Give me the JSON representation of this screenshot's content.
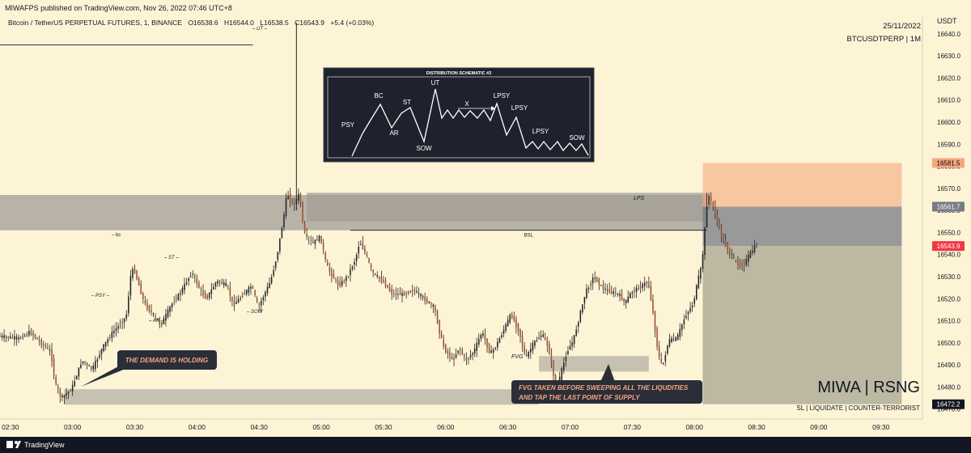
{
  "header": {
    "publisher": "MIWAFPS published on TradingView.com, Nov 26, 2022 07:46 UTC+8",
    "currency": "USDT"
  },
  "legend": {
    "symbol": "Bitcoin / TetherUS PERPETUAL FUTURES, 1, BINANCE",
    "open": "O16538.6",
    "high": "H16544.0",
    "low": "L16538.5",
    "close": "C16543.9",
    "change": "+5.4 (+0.03%)"
  },
  "top_right": {
    "date": "25/11/2022",
    "ticker": "BTCUSDTPERP | 1M"
  },
  "schematic": {
    "title": "DISTRIBUTION SCHEMATIC #2",
    "labels": [
      "PSY",
      "BC",
      "AR",
      "ST",
      "SOW",
      "UT",
      "X",
      "LPSY",
      "LPSY",
      "LPSY",
      "SOW"
    ]
  },
  "annotations": {
    "demand_callout": "THE DEMAND IS HOLDING",
    "fvg_callout_line1": "FVG TAKEN BEFORE SWEEPING ALL THE LIQUDITIES",
    "fvg_callout_line2": "AND TAP THE LAST POINT OF SUPPLY",
    "fvg": "FVG",
    "bsl": "BSL",
    "lps": "LPS",
    "ut": "UT",
    "bc": "bc",
    "psy": "PSY",
    "ar": "AR",
    "st": "ST",
    "sow": "SOW"
  },
  "branding": {
    "watermark": "MIWA | RSNG",
    "subtitle": "SL | LIQUIDATE | COUNTER-TERRORIST",
    "footer": "TradingView"
  },
  "chart_data": {
    "type": "candlestick",
    "x_ticks": [
      "02:30",
      "03:00",
      "03:30",
      "04:00",
      "04:30",
      "05:00",
      "05:30",
      "06:00",
      "06:30",
      "07:00",
      "07:30",
      "08:00",
      "08:30",
      "09:00",
      "09:30"
    ],
    "x_range_minutes": [
      145,
      590
    ],
    "y_ticks": [
      16470.0,
      16480.0,
      16490.0,
      16500.0,
      16510.0,
      16520.0,
      16530.0,
      16540.0,
      16550.0,
      16560.0,
      16570.0,
      16580.0,
      16590.0,
      16600.0,
      16610.0,
      16620.0,
      16630.0,
      16640.0
    ],
    "ylim": [
      16465.5,
      16648.0
    ],
    "price_labels": [
      {
        "value": 16581.5,
        "text": "16581.5",
        "color": "#f7a77e",
        "text_color": "#000000"
      },
      {
        "value": 16561.7,
        "text": "16561.7",
        "color": "#787b86",
        "text_color": "#ffffff"
      },
      {
        "value": 16543.9,
        "text": "16543.9",
        "color": "#f23645",
        "text_color": "#ffffff"
      },
      {
        "value": 16472.2,
        "text": "16472.2",
        "color": "#131722",
        "text_color": "#ffffff"
      }
    ],
    "path_points": [
      [
        145,
        16503
      ],
      [
        155,
        16502
      ],
      [
        160,
        16505
      ],
      [
        165,
        16500
      ],
      [
        170,
        16496
      ],
      [
        172,
        16482
      ],
      [
        175,
        16475
      ],
      [
        180,
        16479
      ],
      [
        185,
        16492
      ],
      [
        190,
        16488
      ],
      [
        195,
        16498
      ],
      [
        200,
        16505
      ],
      [
        205,
        16510
      ],
      [
        207,
        16514
      ],
      [
        208,
        16529
      ],
      [
        210,
        16534
      ],
      [
        215,
        16518
      ],
      [
        220,
        16512
      ],
      [
        223,
        16508
      ],
      [
        228,
        16517
      ],
      [
        232,
        16522
      ],
      [
        235,
        16527
      ],
      [
        238,
        16532
      ],
      [
        242,
        16524
      ],
      [
        245,
        16520
      ],
      [
        250,
        16528
      ],
      [
        255,
        16526
      ],
      [
        258,
        16517
      ],
      [
        262,
        16521
      ],
      [
        267,
        16526
      ],
      [
        270,
        16516
      ],
      [
        272,
        16520
      ],
      [
        276,
        16528
      ],
      [
        279,
        16539
      ],
      [
        282,
        16555
      ],
      [
        284,
        16568
      ],
      [
        287,
        16562
      ],
      [
        290,
        16568
      ],
      [
        292,
        16550
      ],
      [
        296,
        16545
      ],
      [
        300,
        16548
      ],
      [
        303,
        16535
      ],
      [
        306,
        16530
      ],
      [
        309,
        16526
      ],
      [
        313,
        16530
      ],
      [
        317,
        16538
      ],
      [
        319,
        16546
      ],
      [
        322,
        16540
      ],
      [
        325,
        16532
      ],
      [
        330,
        16528
      ],
      [
        335,
        16522
      ],
      [
        340,
        16522
      ],
      [
        345,
        16524
      ],
      [
        350,
        16520
      ],
      [
        355,
        16516
      ],
      [
        358,
        16503
      ],
      [
        360,
        16497
      ],
      [
        364,
        16492
      ],
      [
        367,
        16498
      ],
      [
        370,
        16492
      ],
      [
        374,
        16496
      ],
      [
        378,
        16505
      ],
      [
        382,
        16495
      ],
      [
        385,
        16499
      ],
      [
        389,
        16507
      ],
      [
        392,
        16513
      ],
      [
        396,
        16505
      ],
      [
        399,
        16493
      ],
      [
        403,
        16500
      ],
      [
        407,
        16504
      ],
      [
        410,
        16498
      ],
      [
        412,
        16488
      ],
      [
        414,
        16478
      ],
      [
        416,
        16486
      ],
      [
        419,
        16496
      ],
      [
        422,
        16501
      ],
      [
        425,
        16512
      ],
      [
        428,
        16523
      ],
      [
        432,
        16530
      ],
      [
        436,
        16525
      ],
      [
        440,
        16523
      ],
      [
        444,
        16522
      ],
      [
        447,
        16518
      ],
      [
        450,
        16523
      ],
      [
        454,
        16525
      ],
      [
        458,
        16528
      ],
      [
        460,
        16517
      ],
      [
        463,
        16495
      ],
      [
        465,
        16489
      ],
      [
        468,
        16501
      ],
      [
        472,
        16502
      ],
      [
        476,
        16512
      ],
      [
        480,
        16518
      ],
      [
        482,
        16528
      ],
      [
        484,
        16535
      ],
      [
        486,
        16557
      ],
      [
        487,
        16568
      ],
      [
        490,
        16560
      ],
      [
        493,
        16550
      ],
      [
        495,
        16545
      ],
      [
        498,
        16540
      ],
      [
        501,
        16536
      ],
      [
        504,
        16535
      ],
      [
        507,
        16540
      ],
      [
        510,
        16543.9
      ]
    ],
    "wick_spikes": [
      {
        "t": 288,
        "high": 16645,
        "low": 16560,
        "label": "UT"
      },
      {
        "t": 486,
        "high": 16568,
        "low": 16555,
        "label": "LPS"
      }
    ],
    "zones": [
      {
        "name": "supply",
        "t_start": 145,
        "t_end": 486,
        "y_low": 16551,
        "y_high": 16567,
        "color": "#a29e97"
      },
      {
        "name": "upper-supply",
        "t_start": 293,
        "t_end": 486,
        "y_low": 16555,
        "y_high": 16568,
        "color": "#a29e97"
      },
      {
        "name": "demand",
        "t_start": 176,
        "t_end": 405,
        "y_low": 16472,
        "y_high": 16479,
        "color": "#b4b0a4"
      },
      {
        "name": "fvg",
        "t_start": 405,
        "t_end": 458,
        "y_low": 16487,
        "y_high": 16494,
        "color": "#b4b0a4"
      }
    ],
    "position": {
      "entry_time": 484,
      "end_time": 580,
      "stop_loss": 16581.5,
      "entry": 16561.7,
      "target": 16472.2,
      "current": 16543.9
    },
    "levels": [
      {
        "name": "top-line",
        "t_start": 145,
        "t_end": 267,
        "y": 16635
      },
      {
        "name": "bsl",
        "t_start": 314,
        "t_end": 486,
        "y": 16551,
        "label": "BSL"
      }
    ]
  }
}
